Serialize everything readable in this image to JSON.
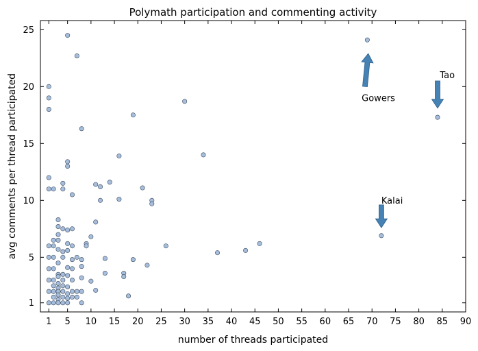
{
  "chart_data": {
    "type": "scatter",
    "title": "Polymath participation and commenting activity",
    "xlabel": "number of threads participated",
    "ylabel": "avg comments per thread participated",
    "xlim": [
      -0.8,
      90
    ],
    "ylim": [
      0.2,
      25.8
    ],
    "xticks": [
      1,
      5,
      10,
      15,
      20,
      25,
      30,
      35,
      40,
      45,
      50,
      55,
      60,
      65,
      70,
      75,
      80,
      85,
      90
    ],
    "yticks": [
      1,
      5,
      10,
      15,
      20,
      25
    ],
    "grid": false,
    "colors": {
      "marker_fill": "#a6bddb",
      "marker_edge": "#3b4a5e",
      "arrow": "#4682b4"
    },
    "points": [
      {
        "x": 1,
        "y": 20
      },
      {
        "x": 1,
        "y": 19
      },
      {
        "x": 1,
        "y": 18
      },
      {
        "x": 1,
        "y": 12
      },
      {
        "x": 1,
        "y": 11
      },
      {
        "x": 1,
        "y": 6
      },
      {
        "x": 1,
        "y": 5
      },
      {
        "x": 1,
        "y": 4
      },
      {
        "x": 1,
        "y": 3
      },
      {
        "x": 1,
        "y": 2
      },
      {
        "x": 1,
        "y": 1
      },
      {
        "x": 2,
        "y": 11
      },
      {
        "x": 2,
        "y": 6.5
      },
      {
        "x": 2,
        "y": 6
      },
      {
        "x": 2,
        "y": 5
      },
      {
        "x": 2,
        "y": 4
      },
      {
        "x": 2,
        "y": 3
      },
      {
        "x": 2,
        "y": 2.5
      },
      {
        "x": 2,
        "y": 2
      },
      {
        "x": 2,
        "y": 1.5
      },
      {
        "x": 2,
        "y": 1
      },
      {
        "x": 3,
        "y": 8.3
      },
      {
        "x": 3,
        "y": 7.7
      },
      {
        "x": 3,
        "y": 7
      },
      {
        "x": 3,
        "y": 6.5
      },
      {
        "x": 3,
        "y": 5.7
      },
      {
        "x": 3,
        "y": 4.5
      },
      {
        "x": 3,
        "y": 3.5
      },
      {
        "x": 3,
        "y": 3.3
      },
      {
        "x": 3,
        "y": 2.7
      },
      {
        "x": 3,
        "y": 2.3
      },
      {
        "x": 3,
        "y": 2
      },
      {
        "x": 3,
        "y": 1.7
      },
      {
        "x": 3,
        "y": 1.3
      },
      {
        "x": 3,
        "y": 1
      },
      {
        "x": 4,
        "y": 11.5
      },
      {
        "x": 4,
        "y": 11
      },
      {
        "x": 4,
        "y": 7.5
      },
      {
        "x": 4,
        "y": 5.5
      },
      {
        "x": 4,
        "y": 5
      },
      {
        "x": 4,
        "y": 3.5
      },
      {
        "x": 4,
        "y": 3
      },
      {
        "x": 4,
        "y": 2.5
      },
      {
        "x": 4,
        "y": 2
      },
      {
        "x": 4,
        "y": 1.5
      },
      {
        "x": 4,
        "y": 1
      },
      {
        "x": 5,
        "y": 24.5
      },
      {
        "x": 5,
        "y": 13.4
      },
      {
        "x": 5,
        "y": 13
      },
      {
        "x": 5,
        "y": 7.4
      },
      {
        "x": 5,
        "y": 6.2
      },
      {
        "x": 5,
        "y": 5.6
      },
      {
        "x": 5,
        "y": 4.1
      },
      {
        "x": 5,
        "y": 3.4
      },
      {
        "x": 5,
        "y": 2.4
      },
      {
        "x": 5,
        "y": 1.8
      },
      {
        "x": 5,
        "y": 1.4
      },
      {
        "x": 5,
        "y": 1
      },
      {
        "x": 6,
        "y": 10.5
      },
      {
        "x": 6,
        "y": 7.5
      },
      {
        "x": 6,
        "y": 6
      },
      {
        "x": 6,
        "y": 4.8
      },
      {
        "x": 6,
        "y": 4
      },
      {
        "x": 6,
        "y": 3
      },
      {
        "x": 6,
        "y": 2
      },
      {
        "x": 6,
        "y": 1.5
      },
      {
        "x": 7,
        "y": 22.7
      },
      {
        "x": 7,
        "y": 5
      },
      {
        "x": 7,
        "y": 2
      },
      {
        "x": 7,
        "y": 1.5
      },
      {
        "x": 8,
        "y": 16.3
      },
      {
        "x": 8,
        "y": 4.8
      },
      {
        "x": 8,
        "y": 4.2
      },
      {
        "x": 8,
        "y": 3.2
      },
      {
        "x": 8,
        "y": 2
      },
      {
        "x": 8,
        "y": 1
      },
      {
        "x": 9,
        "y": 6.2
      },
      {
        "x": 9,
        "y": 6
      },
      {
        "x": 10,
        "y": 6.8
      },
      {
        "x": 10,
        "y": 2.9
      },
      {
        "x": 11,
        "y": 11.4
      },
      {
        "x": 11,
        "y": 8.1
      },
      {
        "x": 11,
        "y": 2.1
      },
      {
        "x": 12,
        "y": 11.2
      },
      {
        "x": 12,
        "y": 10
      },
      {
        "x": 13,
        "y": 4.9
      },
      {
        "x": 13,
        "y": 3.6
      },
      {
        "x": 14,
        "y": 11.6
      },
      {
        "x": 16,
        "y": 13.9
      },
      {
        "x": 16,
        "y": 10.1
      },
      {
        "x": 17,
        "y": 3.6
      },
      {
        "x": 17,
        "y": 3.3
      },
      {
        "x": 18,
        "y": 1.6
      },
      {
        "x": 19,
        "y": 17.5
      },
      {
        "x": 19,
        "y": 4.8
      },
      {
        "x": 21,
        "y": 11.1
      },
      {
        "x": 22,
        "y": 4.3
      },
      {
        "x": 23,
        "y": 10
      },
      {
        "x": 23,
        "y": 9.7
      },
      {
        "x": 26,
        "y": 6
      },
      {
        "x": 30,
        "y": 18.7
      },
      {
        "x": 34,
        "y": 14
      },
      {
        "x": 37,
        "y": 5.4
      },
      {
        "x": 43,
        "y": 5.6
      },
      {
        "x": 46,
        "y": 6.2
      },
      {
        "x": 69,
        "y": 24.1
      },
      {
        "x": 72,
        "y": 6.9
      },
      {
        "x": 84,
        "y": 17.3
      }
    ],
    "annotations": [
      {
        "text": "Gowers",
        "x": 67.8,
        "y": 19,
        "arrow_from": [
          68.5,
          20
        ],
        "arrow_to": [
          69.2,
          22.9
        ]
      },
      {
        "text": "Tao",
        "x": 84.5,
        "y": 21,
        "arrow_from": [
          84,
          20.5
        ],
        "arrow_to": [
          84,
          18.1
        ]
      },
      {
        "text": "Kalai",
        "x": 72,
        "y": 10,
        "arrow_from": [
          72,
          9.6
        ],
        "arrow_to": [
          72,
          7.6
        ]
      }
    ]
  }
}
